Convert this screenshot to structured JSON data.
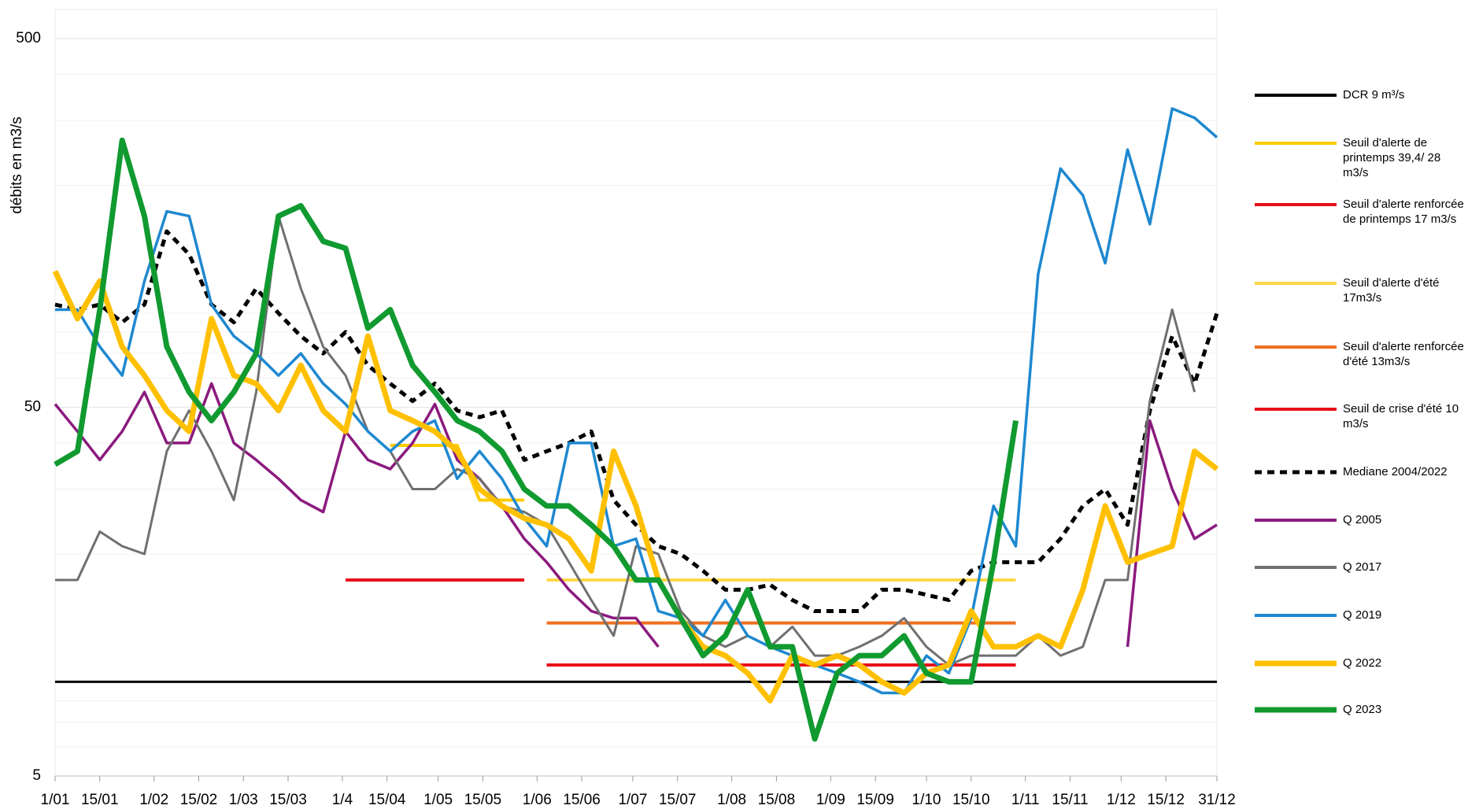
{
  "chart_data": {
    "type": "line",
    "y_label": "débits en m3/s",
    "log_scale": true,
    "grid": true,
    "legend": "right",
    "xlim": [
      0,
      364
    ],
    "ylim": [
      5,
      600
    ],
    "yticks": [
      5,
      50,
      500
    ],
    "xticks": [
      {
        "value": 0,
        "label": "1/01"
      },
      {
        "value": 14,
        "label": "15/01"
      },
      {
        "value": 31,
        "label": "1/02"
      },
      {
        "value": 45,
        "label": "15/02"
      },
      {
        "value": 59,
        "label": "1/03"
      },
      {
        "value": 73,
        "label": "15/03"
      },
      {
        "value": 90,
        "label": "1/4"
      },
      {
        "value": 104,
        "label": "15/04"
      },
      {
        "value": 120,
        "label": "1/05"
      },
      {
        "value": 134,
        "label": "15/05"
      },
      {
        "value": 151,
        "label": "1/06"
      },
      {
        "value": 165,
        "label": "15/06"
      },
      {
        "value": 181,
        "label": "1/07"
      },
      {
        "value": 195,
        "label": "15/07"
      },
      {
        "value": 212,
        "label": "1/08"
      },
      {
        "value": 226,
        "label": "15/08"
      },
      {
        "value": 243,
        "label": "1/09"
      },
      {
        "value": 257,
        "label": "15/09"
      },
      {
        "value": 273,
        "label": "1/10"
      },
      {
        "value": 287,
        "label": "15/10"
      },
      {
        "value": 304,
        "label": "1/11"
      },
      {
        "value": 318,
        "label": "15/11"
      },
      {
        "value": 334,
        "label": "1/12"
      },
      {
        "value": 348,
        "label": "15/12"
      },
      {
        "value": 364,
        "label": "31/12"
      }
    ],
    "x": [
      0,
      7,
      14,
      21,
      28,
      35,
      42,
      49,
      56,
      63,
      70,
      77,
      84,
      91,
      98,
      105,
      112,
      119,
      126,
      133,
      140,
      147,
      154,
      161,
      168,
      175,
      182,
      189,
      196,
      203,
      210,
      217,
      224,
      231,
      238,
      245,
      252,
      259,
      266,
      273,
      280,
      287,
      294,
      301,
      308,
      315,
      322,
      329,
      336,
      343,
      350,
      357,
      364
    ],
    "series": [
      {
        "name": "DCR 9 m³/s",
        "color": "#000000",
        "style": "solid",
        "values": [
          9,
          9,
          9,
          9,
          9,
          9,
          9,
          9,
          9,
          9,
          9,
          9,
          9,
          9,
          9,
          9,
          9,
          9,
          9,
          9,
          9,
          9,
          9,
          9,
          9,
          9,
          9,
          9,
          9,
          9,
          9,
          9,
          9,
          9,
          9,
          9,
          9,
          9,
          9,
          9,
          9,
          9,
          9,
          9,
          9,
          9,
          9,
          9,
          9,
          9,
          9,
          9,
          9
        ]
      },
      {
        "name": "Seuil d'alerte de printemps 39,4/ 28 m3/s",
        "color": "#ffcc00",
        "style": "solid",
        "values": [
          null,
          null,
          null,
          null,
          null,
          null,
          null,
          null,
          null,
          null,
          null,
          null,
          null,
          null,
          null,
          39.4,
          39.4,
          39.4,
          39.4,
          28,
          28,
          28,
          null,
          null,
          null,
          null,
          null,
          null,
          null,
          null,
          null,
          null,
          null,
          null,
          null,
          null,
          null,
          null,
          null,
          null,
          null,
          null,
          null,
          null,
          null,
          null,
          null,
          null,
          null,
          null,
          null,
          null,
          null
        ]
      },
      {
        "name": "Seuil d'alerte renforcée de printemps 17 m3/s",
        "color": "#e8101a",
        "style": "solid",
        "values": [
          null,
          null,
          null,
          null,
          null,
          null,
          null,
          null,
          null,
          null,
          null,
          null,
          null,
          17,
          17,
          17,
          17,
          17,
          17,
          17,
          17,
          17,
          null,
          null,
          null,
          null,
          null,
          null,
          null,
          null,
          null,
          null,
          null,
          null,
          null,
          null,
          null,
          null,
          null,
          null,
          null,
          null,
          null,
          null,
          null,
          null,
          null,
          null,
          null,
          null,
          null,
          null,
          null
        ]
      },
      {
        "name": "Seuil d'alerte d'été 17m3/s",
        "color": "#ffd84a",
        "style": "solid",
        "values": [
          null,
          null,
          null,
          null,
          null,
          null,
          null,
          null,
          null,
          null,
          null,
          null,
          null,
          null,
          null,
          null,
          null,
          null,
          null,
          null,
          null,
          null,
          17,
          17,
          17,
          17,
          17,
          17,
          17,
          17,
          17,
          17,
          17,
          17,
          17,
          17,
          17,
          17,
          17,
          17,
          17,
          17,
          17,
          17,
          null,
          null,
          null,
          null,
          null,
          null,
          null,
          null,
          null
        ]
      },
      {
        "name": "Seuil d'alerte renforcée d'été 13m3/s",
        "color": "#f07020",
        "style": "solid",
        "values": [
          null,
          null,
          null,
          null,
          null,
          null,
          null,
          null,
          null,
          null,
          null,
          null,
          null,
          null,
          null,
          null,
          null,
          null,
          null,
          null,
          null,
          null,
          13,
          13,
          13,
          13,
          13,
          13,
          13,
          13,
          13,
          13,
          13,
          13,
          13,
          13,
          13,
          13,
          13,
          13,
          13,
          13,
          13,
          13,
          null,
          null,
          null,
          null,
          null,
          null,
          null,
          null,
          null
        ]
      },
      {
        "name": "Seuil de crise d'été 10 m3/s",
        "color": "#e8101a",
        "style": "solid",
        "values": [
          null,
          null,
          null,
          null,
          null,
          null,
          null,
          null,
          null,
          null,
          null,
          null,
          null,
          null,
          null,
          null,
          null,
          null,
          null,
          null,
          null,
          null,
          10,
          10,
          10,
          10,
          10,
          10,
          10,
          10,
          10,
          10,
          10,
          10,
          10,
          10,
          10,
          10,
          10,
          10,
          10,
          10,
          10,
          10,
          null,
          null,
          null,
          null,
          null,
          null,
          null,
          null,
          null
        ]
      },
      {
        "name": "Mediane 2004/2022",
        "color": "#000000",
        "style": "dashed",
        "values": [
          95,
          92,
          95,
          85,
          95,
          150,
          130,
          95,
          85,
          105,
          90,
          78,
          70,
          80,
          65,
          58,
          52,
          58,
          49,
          47,
          49,
          36,
          38,
          40,
          43,
          28,
          24,
          21,
          20,
          18,
          16,
          16,
          16.5,
          15,
          14,
          14,
          14,
          16,
          16,
          15.5,
          15,
          18,
          19,
          19,
          19,
          22,
          27,
          30,
          24,
          49,
          78,
          58,
          90
        ]
      },
      {
        "name": "Q 2005",
        "color": "#8b1a7e",
        "style": "solid",
        "values": [
          51,
          43,
          36,
          43,
          55,
          40,
          40,
          58,
          40,
          36,
          32,
          28,
          26,
          43,
          36,
          34,
          40,
          51,
          36,
          32,
          27,
          22,
          19,
          16,
          14,
          13.4,
          13.4,
          11.2,
          null,
          null,
          null,
          null,
          null,
          null,
          null,
          null,
          null,
          null,
          null,
          null,
          null,
          null,
          null,
          null,
          null,
          null,
          null,
          null,
          11.2,
          46,
          30,
          22,
          24
        ]
      },
      {
        "name": "Q 2017",
        "color": "#707070",
        "style": "solid",
        "values": [
          17,
          17,
          23,
          21,
          20,
          38,
          49,
          38,
          28,
          55,
          165,
          105,
          73,
          61,
          43,
          38,
          30,
          30,
          34,
          32,
          27,
          26,
          24,
          19,
          15,
          12,
          21,
          20,
          14,
          12,
          11.2,
          12,
          11.2,
          12.7,
          10.6,
          10.6,
          11.2,
          12,
          13.4,
          11.2,
          10,
          10.6,
          10.6,
          10.6,
          12,
          10.6,
          11.2,
          17,
          17,
          52,
          92,
          55,
          null
        ]
      },
      {
        "name": "Q 2019",
        "color": "#1e88d0",
        "style": "solid",
        "values": [
          92,
          92,
          73,
          61,
          110,
          170,
          165,
          95,
          78,
          70,
          61,
          70,
          58,
          51,
          43,
          38,
          43,
          46,
          32,
          38,
          32,
          25,
          21,
          40,
          40,
          21,
          22,
          14,
          13.4,
          12,
          15,
          12,
          11.2,
          10.6,
          10,
          9.5,
          9,
          8.4,
          8.4,
          10.6,
          9.5,
          13.4,
          27,
          21,
          115,
          222,
          188,
          123,
          250,
          157,
          323,
          305,
          270
        ]
      },
      {
        "name": "Q 2022",
        "color": "#ffc000",
        "style": "solid",
        "values": [
          117,
          87,
          110,
          73,
          61,
          49,
          43,
          87,
          61,
          58,
          49,
          65,
          49,
          43,
          78,
          49,
          46,
          43,
          38,
          30,
          27,
          25,
          24,
          22,
          18,
          38,
          27,
          17,
          13.4,
          11.2,
          10.6,
          9.5,
          8,
          10.6,
          10,
          10.6,
          10,
          9,
          8.4,
          9.5,
          10,
          14,
          11.2,
          11.2,
          12,
          11.2,
          16,
          27,
          19,
          20,
          21,
          38,
          34
        ]
      },
      {
        "name": "Q 2023",
        "color": "#109a30",
        "style": "solid",
        "values": [
          35,
          38,
          92,
          265,
          165,
          73,
          55,
          46,
          55,
          70,
          165,
          176,
          141,
          135,
          82,
          92,
          65,
          55,
          46,
          43,
          38,
          30,
          27,
          27,
          24,
          21,
          17,
          17,
          13.4,
          10.6,
          12,
          16,
          11.2,
          11.2,
          6.3,
          9.5,
          10.6,
          10.6,
          12,
          9.5,
          9,
          9,
          19,
          46,
          null,
          null,
          null,
          null,
          null,
          null,
          null,
          null,
          null
        ]
      }
    ]
  }
}
